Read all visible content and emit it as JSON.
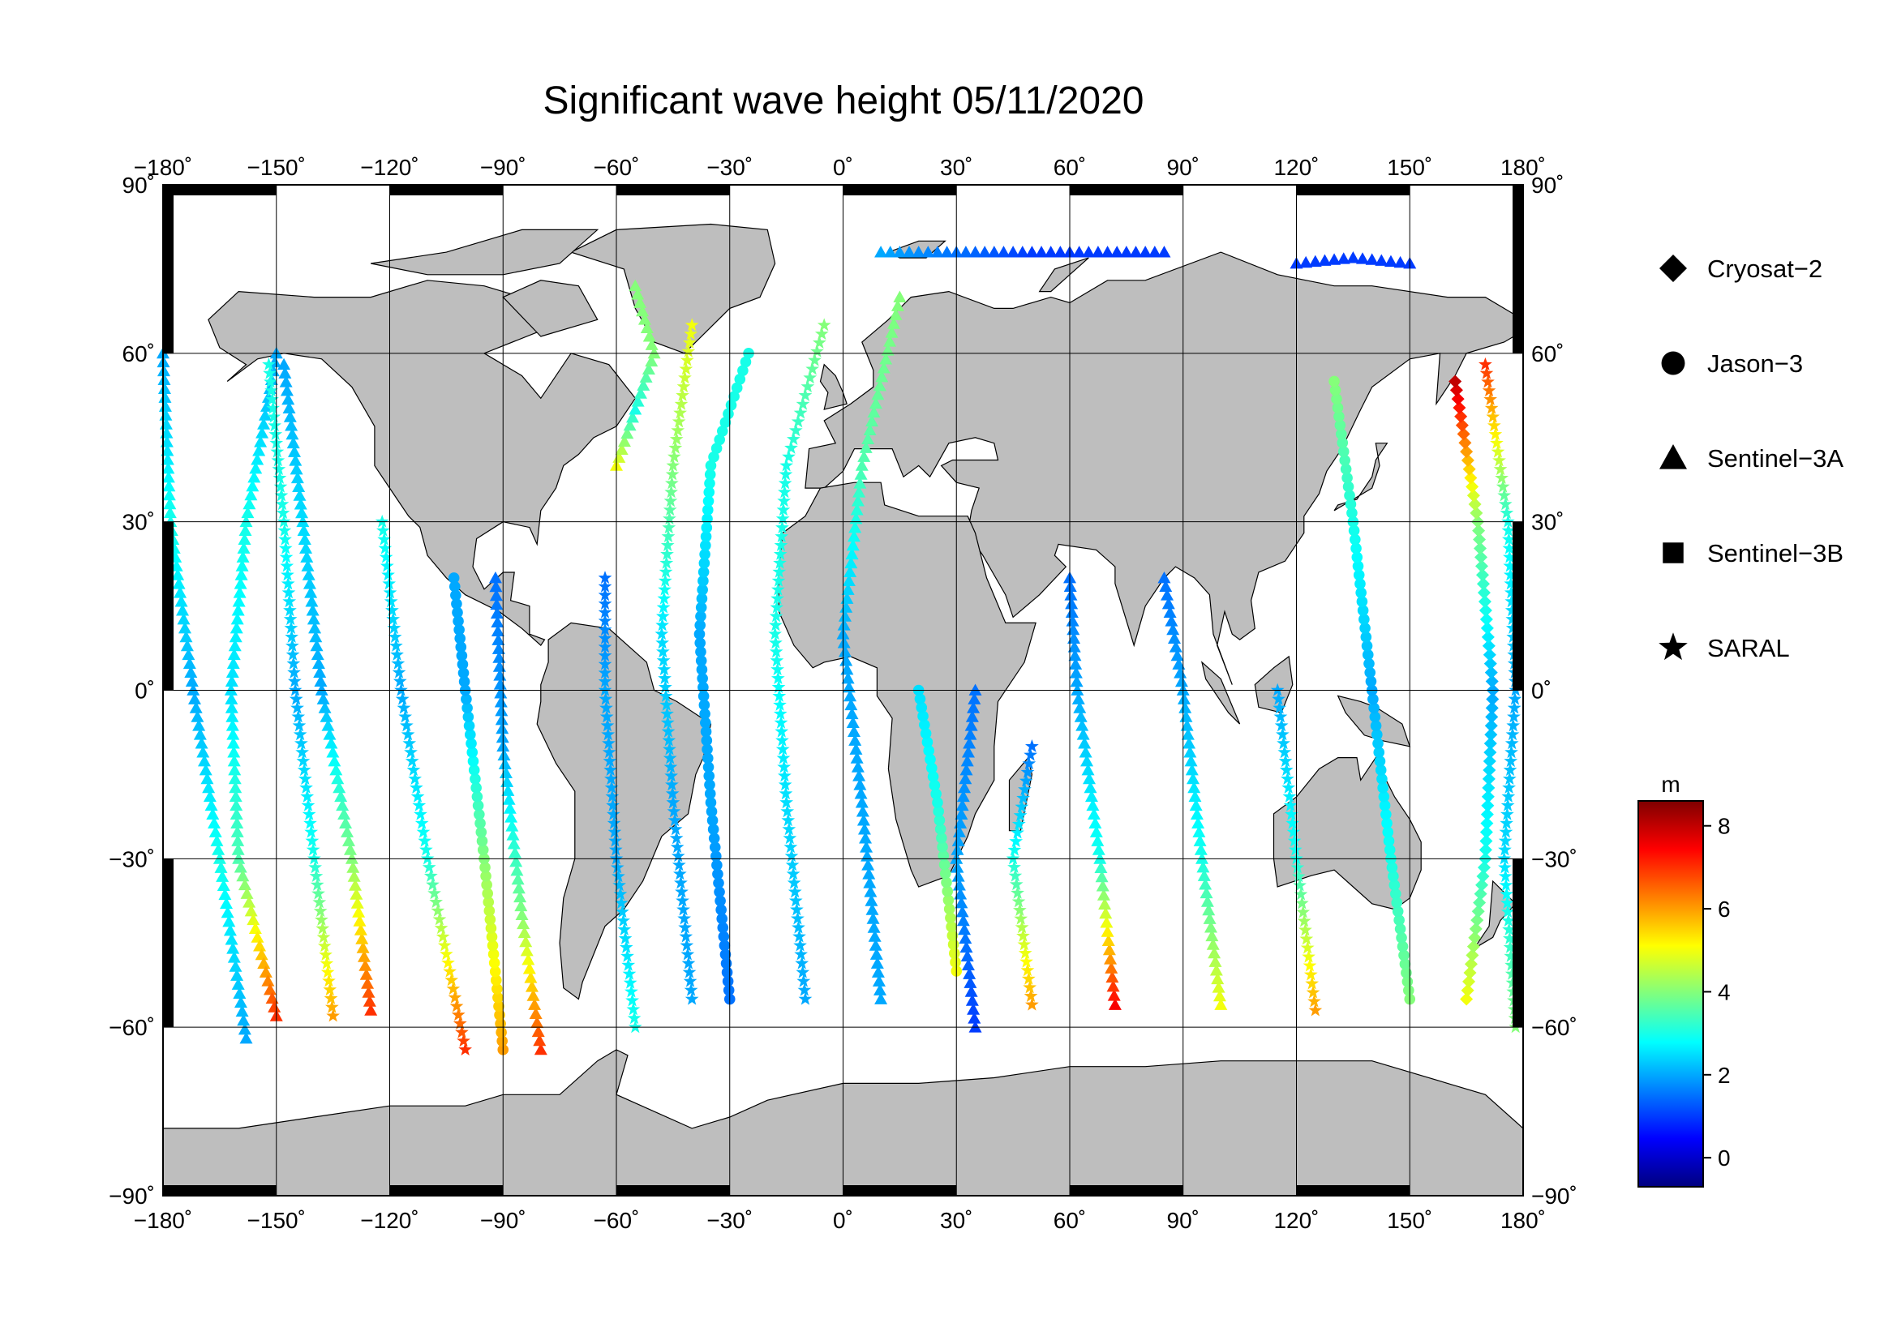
{
  "title": "Significant wave height 05/11/2020",
  "colors": {
    "land": "#bebebe",
    "ocean": "#ffffff",
    "grid": "#000000",
    "colormap": [
      "#00007f",
      "#0000ff",
      "#007fff",
      "#00ffff",
      "#7fff7f",
      "#ffff00",
      "#ff7f00",
      "#ff0000",
      "#7f0000"
    ]
  },
  "axes": {
    "lon_ticks": [
      -180,
      -150,
      -120,
      -90,
      -60,
      -30,
      0,
      30,
      60,
      90,
      120,
      150,
      180
    ],
    "lon_labels": [
      "−180˚",
      "−150˚",
      "−120˚",
      "−90˚",
      "−60˚",
      "−30˚",
      "0˚",
      "30˚",
      "60˚",
      "90˚",
      "120˚",
      "150˚",
      "180˚"
    ],
    "lat_ticks": [
      90,
      60,
      30,
      0,
      -30,
      -60,
      -90
    ],
    "lat_labels": [
      "90˚",
      "60˚",
      "30˚",
      "0˚",
      "−30˚",
      "−60˚",
      "−90˚"
    ],
    "lon_range": [
      -180,
      180
    ],
    "lat_range": [
      -90,
      90
    ]
  },
  "legend": {
    "entries": [
      {
        "label": "Cryosat−2",
        "icon": "diamond-icon"
      },
      {
        "label": "Jason−3",
        "icon": "circle-icon"
      },
      {
        "label": "Sentinel−3A",
        "icon": "triangle-icon"
      },
      {
        "label": "Sentinel−3B",
        "icon": "square-icon"
      },
      {
        "label": "SARAL",
        "icon": "star-icon"
      }
    ]
  },
  "colorbar": {
    "unit": "m",
    "range": [
      -0.7,
      8.6
    ],
    "ticks": [
      0,
      2,
      4,
      6,
      8
    ],
    "tick_labels": [
      "0",
      "2",
      "4",
      "6",
      "8"
    ]
  },
  "chart_data": {
    "type": "scatter",
    "title": "Significant wave height 05/11/2020",
    "value_unit": "m",
    "tracks": [
      {
        "satellite": "Sentinel-3A",
        "points": [
          [
            -158,
            -62,
            2
          ],
          [
            -165,
            -30,
            3
          ],
          [
            -172,
            0,
            2
          ],
          [
            -178,
            30,
            3
          ],
          [
            -180,
            60,
            2
          ]
        ]
      },
      {
        "satellite": "Sentinel-3A",
        "points": [
          [
            -150,
            60,
            2
          ],
          [
            -158,
            30,
            3
          ],
          [
            -162,
            0,
            2.5
          ],
          [
            -160,
            -30,
            3.5
          ],
          [
            -150,
            -58,
            7
          ]
        ]
      },
      {
        "satellite": "SARAL",
        "points": [
          [
            -135,
            -58,
            6
          ],
          [
            -140,
            -30,
            3
          ],
          [
            -145,
            0,
            2
          ],
          [
            -148,
            30,
            3
          ],
          [
            -152,
            58,
            3
          ]
        ]
      },
      {
        "satellite": "Sentinel-3A",
        "points": [
          [
            -125,
            -57,
            7
          ],
          [
            -130,
            -30,
            4
          ],
          [
            -138,
            0,
            2
          ],
          [
            -143,
            30,
            2.5
          ],
          [
            -148,
            58,
            2
          ]
        ]
      },
      {
        "satellite": "SARAL",
        "points": [
          [
            -100,
            -64,
            7
          ],
          [
            -110,
            -30,
            3
          ],
          [
            -117,
            0,
            2
          ],
          [
            -122,
            30,
            3
          ]
        ]
      },
      {
        "satellite": "Jason-3",
        "points": [
          [
            -90,
            -64,
            6
          ],
          [
            -95,
            -30,
            4
          ],
          [
            -100,
            0,
            2
          ],
          [
            -103,
            20,
            2
          ]
        ]
      },
      {
        "satellite": "Sentinel-3A",
        "points": [
          [
            -80,
            -64,
            7
          ],
          [
            -85,
            -40,
            4
          ],
          [
            -90,
            -10,
            2
          ],
          [
            -92,
            20,
            1.5
          ]
        ]
      },
      {
        "satellite": "SARAL",
        "points": [
          [
            -55,
            -60,
            3
          ],
          [
            -60,
            -30,
            2
          ],
          [
            -63,
            0,
            2
          ],
          [
            -63,
            20,
            1.5
          ]
        ]
      },
      {
        "satellite": "Sentinel-3A",
        "points": [
          [
            -60,
            40,
            5
          ],
          [
            -55,
            50,
            3
          ],
          [
            -50,
            60,
            4
          ],
          [
            -55,
            72,
            4
          ]
        ]
      },
      {
        "satellite": "SARAL",
        "points": [
          [
            -40,
            -55,
            2
          ],
          [
            -45,
            -20,
            2
          ],
          [
            -48,
            10,
            2.5
          ],
          [
            -45,
            40,
            4
          ],
          [
            -40,
            65,
            5
          ]
        ]
      },
      {
        "satellite": "Jason-3",
        "points": [
          [
            -30,
            -55,
            1.5
          ],
          [
            -35,
            -20,
            2
          ],
          [
            -38,
            10,
            2
          ],
          [
            -35,
            40,
            3
          ],
          [
            -25,
            60,
            3
          ]
        ]
      },
      {
        "satellite": "SARAL",
        "points": [
          [
            -10,
            -55,
            2
          ],
          [
            -15,
            -20,
            2.5
          ],
          [
            -18,
            10,
            3
          ],
          [
            -15,
            40,
            3
          ],
          [
            -5,
            65,
            4
          ]
        ]
      },
      {
        "satellite": "Sentinel-3A",
        "points": [
          [
            10,
            -55,
            2
          ],
          [
            5,
            -20,
            2
          ],
          [
            0,
            10,
            2
          ],
          [
            5,
            40,
            3.5
          ],
          [
            15,
            70,
            4
          ]
        ]
      },
      {
        "satellite": "Jason-3",
        "points": [
          [
            30,
            -50,
            5
          ],
          [
            25,
            -20,
            3
          ],
          [
            20,
            0,
            2.5
          ]
        ]
      },
      {
        "satellite": "Sentinel-3A",
        "points": [
          [
            35,
            -60,
            1
          ],
          [
            30,
            -30,
            2
          ],
          [
            35,
            0,
            1.5
          ]
        ]
      },
      {
        "satellite": "SARAL",
        "points": [
          [
            50,
            -56,
            6
          ],
          [
            45,
            -30,
            3
          ],
          [
            50,
            -10,
            1.5
          ]
        ]
      },
      {
        "satellite": "Sentinel-3A",
        "points": [
          [
            72,
            -56,
            7.5
          ],
          [
            68,
            -30,
            3
          ],
          [
            62,
            0,
            2
          ],
          [
            60,
            20,
            1.5
          ]
        ]
      },
      {
        "satellite": "Sentinel-3A",
        "points": [
          [
            100,
            -56,
            5
          ],
          [
            95,
            -30,
            3
          ],
          [
            90,
            0,
            2
          ],
          [
            85,
            20,
            1.5
          ]
        ]
      },
      {
        "satellite": "SARAL",
        "points": [
          [
            125,
            -57,
            6
          ],
          [
            120,
            -30,
            3
          ],
          [
            115,
            0,
            2
          ]
        ]
      },
      {
        "satellite": "Jason-3",
        "points": [
          [
            150,
            -55,
            4
          ],
          [
            145,
            -30,
            3
          ],
          [
            140,
            0,
            2
          ],
          [
            135,
            30,
            3
          ],
          [
            130,
            55,
            4
          ]
        ]
      },
      {
        "satellite": "Cryosat-2",
        "points": [
          [
            165,
            -55,
            5
          ],
          [
            170,
            -30,
            3
          ],
          [
            172,
            0,
            2
          ],
          [
            168,
            30,
            4
          ],
          [
            162,
            55,
            8
          ]
        ]
      },
      {
        "satellite": "SARAL",
        "points": [
          [
            178,
            -60,
            4
          ],
          [
            175,
            -30,
            2.5
          ],
          [
            178,
            0,
            2
          ],
          [
            176,
            30,
            3
          ],
          [
            170,
            58,
            7
          ]
        ]
      },
      {
        "satellite": "Sentinel-3A",
        "points": [
          [
            10,
            78,
            2
          ],
          [
            30,
            78,
            1.5
          ],
          [
            50,
            78,
            1
          ],
          [
            70,
            78,
            1
          ],
          [
            85,
            78,
            1
          ]
        ]
      },
      {
        "satellite": "Sentinel-3A",
        "points": [
          [
            120,
            76,
            1
          ],
          [
            135,
            77,
            1
          ],
          [
            150,
            76,
            1
          ]
        ]
      }
    ]
  }
}
